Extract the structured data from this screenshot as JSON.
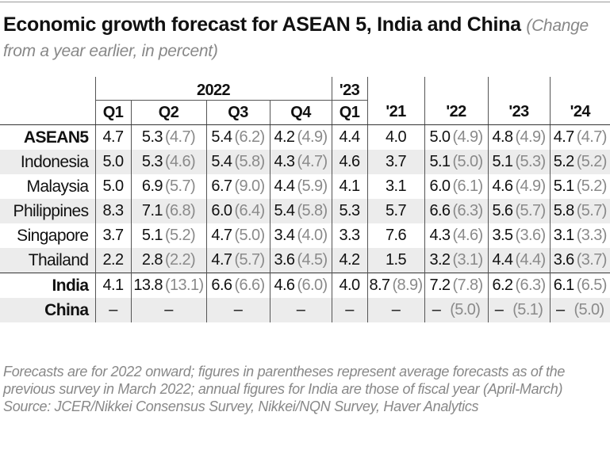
{
  "title": "Economic growth forecast for ASEAN 5, India and China",
  "subtitle": "(Change from a year earlier, in percent)",
  "chart_data": {
    "type": "table",
    "header_groups": [
      {
        "label": "2022"
      },
      {
        "label": "'23"
      }
    ],
    "columns": [
      "Q1",
      "Q2",
      "Q3",
      "Q4",
      "Q1",
      "'21",
      "'22",
      "'23",
      "'24"
    ],
    "rows": [
      {
        "label": "ASEAN5",
        "bold": true,
        "cells": [
          [
            "4.7",
            ""
          ],
          [
            "5.3",
            "(4.7)"
          ],
          [
            "5.4",
            "(6.2)"
          ],
          [
            "4.2",
            "(4.9)"
          ],
          [
            "4.4",
            ""
          ],
          [
            "4.0",
            ""
          ],
          [
            "5.0",
            "(4.9)"
          ],
          [
            "4.8",
            "(4.9)"
          ],
          [
            "4.7",
            "(4.7)"
          ]
        ]
      },
      {
        "label": "Indonesia",
        "bold": false,
        "cells": [
          [
            "5.0",
            ""
          ],
          [
            "5.3",
            "(4.6)"
          ],
          [
            "5.4",
            "(5.8)"
          ],
          [
            "4.3",
            "(4.7)"
          ],
          [
            "4.6",
            ""
          ],
          [
            "3.7",
            ""
          ],
          [
            "5.1",
            "(5.0)"
          ],
          [
            "5.1",
            "(5.3)"
          ],
          [
            "5.2",
            "(5.2)"
          ]
        ]
      },
      {
        "label": "Malaysia",
        "bold": false,
        "cells": [
          [
            "5.0",
            ""
          ],
          [
            "6.9",
            "(5.7)"
          ],
          [
            "6.7",
            "(9.0)"
          ],
          [
            "4.4",
            "(5.9)"
          ],
          [
            "4.1",
            ""
          ],
          [
            "3.1",
            ""
          ],
          [
            "6.0",
            "(6.1)"
          ],
          [
            "4.6",
            "(4.9)"
          ],
          [
            "5.1",
            "(5.2)"
          ]
        ]
      },
      {
        "label": "Philippines",
        "bold": false,
        "cells": [
          [
            "8.3",
            ""
          ],
          [
            "7.1",
            "(6.8)"
          ],
          [
            "6.0",
            "(6.4)"
          ],
          [
            "5.4",
            "(5.8)"
          ],
          [
            "5.3",
            ""
          ],
          [
            "5.7",
            ""
          ],
          [
            "6.6",
            "(6.3)"
          ],
          [
            "5.6",
            "(5.7)"
          ],
          [
            "5.8",
            "(5.7)"
          ]
        ]
      },
      {
        "label": "Singapore",
        "bold": false,
        "cells": [
          [
            "3.7",
            ""
          ],
          [
            "5.1",
            "(5.2)"
          ],
          [
            "4.7",
            "(5.0)"
          ],
          [
            "3.4",
            "(4.0)"
          ],
          [
            "3.3",
            ""
          ],
          [
            "7.6",
            ""
          ],
          [
            "4.3",
            "(4.6)"
          ],
          [
            "3.5",
            "(3.6)"
          ],
          [
            "3.1",
            "(3.3)"
          ]
        ]
      },
      {
        "label": "Thailand",
        "bold": false,
        "cells": [
          [
            "2.2",
            ""
          ],
          [
            "2.8",
            "(2.2)"
          ],
          [
            "4.7",
            "(5.7)"
          ],
          [
            "3.6",
            "(4.5)"
          ],
          [
            "4.2",
            ""
          ],
          [
            "1.5",
            ""
          ],
          [
            "3.2",
            "(3.1)"
          ],
          [
            "4.4",
            "(4.4)"
          ],
          [
            "3.6",
            "(3.7)"
          ]
        ]
      },
      {
        "label": "India",
        "bold": true,
        "cells": [
          [
            "4.1",
            ""
          ],
          [
            "13.8",
            "(13.1)"
          ],
          [
            "6.6",
            "(6.6)"
          ],
          [
            "4.6",
            "(6.0)"
          ],
          [
            "4.0",
            ""
          ],
          [
            "8.7",
            "(8.9)"
          ],
          [
            "7.2",
            "(7.8)"
          ],
          [
            "6.2",
            "(6.3)"
          ],
          [
            "6.1",
            "(6.5)"
          ]
        ]
      },
      {
        "label": "China",
        "bold": true,
        "cells": [
          [
            "–",
            ""
          ],
          [
            "–",
            ""
          ],
          [
            "–",
            ""
          ],
          [
            "–",
            ""
          ],
          [
            "–",
            ""
          ],
          [
            "–",
            ""
          ],
          [
            "–",
            "(5.0)"
          ],
          [
            "–",
            "(5.1)"
          ],
          [
            "–",
            "(5.0)"
          ]
        ]
      }
    ]
  },
  "notes": "Forecasts are for 2022 onward; figures in parentheses represent average forecasts as of the previous survey in March 2022; annual figures for India are those of fiscal year (April-March)",
  "source": "Source: JCER/Nikkei Consensus Survey, Nikkei/NQN Survey, Haver Analytics",
  "colors": {
    "row_shade": "#ececec",
    "previous_forecast_text": "#8a8a8a",
    "note_text": "#888888"
  }
}
